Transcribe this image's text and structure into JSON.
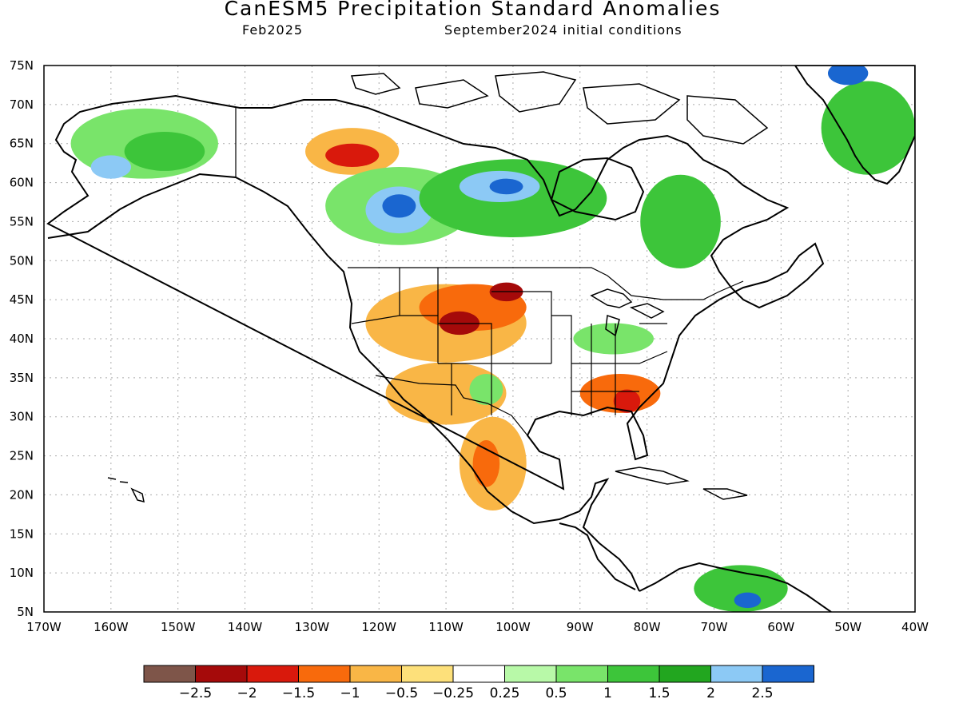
{
  "title": "CanESM5 Precipitation Standard Anomalies",
  "subtitle_left": "Feb2025",
  "subtitle_right": "September2024 initial conditions",
  "map": {
    "lon_range": [
      -170,
      -40
    ],
    "lat_range": [
      5,
      75
    ],
    "lat_labels": [
      "75N",
      "70N",
      "65N",
      "60N",
      "55N",
      "50N",
      "45N",
      "40N",
      "35N",
      "30N",
      "25N",
      "20N",
      "15N",
      "10N",
      "5N"
    ],
    "lon_labels": [
      "170W",
      "160W",
      "150W",
      "140W",
      "130W",
      "120W",
      "110W",
      "100W",
      "90W",
      "80W",
      "70W",
      "60W",
      "50W",
      "40W"
    ]
  },
  "colorbar": {
    "colors": [
      "#7e5549",
      "#a50a0a",
      "#d9190c",
      "#f86a0c",
      "#f9b646",
      "#fde07a",
      "#ffffff",
      "#b8f9a8",
      "#79e46a",
      "#3dc53a",
      "#22a61f",
      "#8cc9f5",
      "#1a66d0"
    ],
    "labels": [
      "−2.5",
      "−2",
      "−1.5",
      "−1",
      "−0.5",
      "−0.25",
      "0.25",
      "0.5",
      "1",
      "1.5",
      "2",
      "2.5"
    ]
  },
  "regions": [
    {
      "id": "alaska-wet",
      "color": "#79e46a",
      "lon": -155,
      "lat": 65,
      "rx": 11,
      "ry": 4.5
    },
    {
      "id": "alaska-wet-core",
      "color": "#3dc53a",
      "lon": -152,
      "lat": 64,
      "rx": 6,
      "ry": 2.5
    },
    {
      "id": "alaska-sw",
      "color": "#8cc9f5",
      "lon": -160,
      "lat": 62,
      "rx": 3,
      "ry": 1.5
    },
    {
      "id": "yukon-dry",
      "color": "#f9b646",
      "lon": -124,
      "lat": 64,
      "rx": 7,
      "ry": 3
    },
    {
      "id": "yukon-dry-core",
      "color": "#d9190c",
      "lon": -124,
      "lat": 63.5,
      "rx": 4,
      "ry": 1.5
    },
    {
      "id": "canada-wet-west",
      "color": "#79e46a",
      "lon": -117,
      "lat": 57,
      "rx": 11,
      "ry": 5
    },
    {
      "id": "canada-wet-west-core",
      "color": "#8cc9f5",
      "lon": -117,
      "lat": 56.5,
      "rx": 5,
      "ry": 3
    },
    {
      "id": "canada-wet-west-peak",
      "color": "#1a66d0",
      "lon": -117,
      "lat": 57,
      "rx": 2.5,
      "ry": 1.5
    },
    {
      "id": "canada-central-wet",
      "color": "#3dc53a",
      "lon": -100,
      "lat": 58,
      "rx": 14,
      "ry": 5
    },
    {
      "id": "canada-central-blue",
      "color": "#8cc9f5",
      "lon": -102,
      "lat": 59.5,
      "rx": 6,
      "ry": 2
    },
    {
      "id": "canada-central-peak",
      "color": "#1a66d0",
      "lon": -101,
      "lat": 59.5,
      "rx": 2.5,
      "ry": 1
    },
    {
      "id": "quebec-wet",
      "color": "#3dc53a",
      "lon": -75,
      "lat": 55,
      "rx": 6,
      "ry": 6
    },
    {
      "id": "greenland-wet",
      "color": "#3dc53a",
      "lon": -47,
      "lat": 67,
      "rx": 7,
      "ry": 6
    },
    {
      "id": "greenland-blue",
      "color": "#1a66d0",
      "lon": -50,
      "lat": 74,
      "rx": 3,
      "ry": 1.5
    },
    {
      "id": "plains-dry",
      "color": "#f9b646",
      "lon": -110,
      "lat": 42,
      "rx": 12,
      "ry": 5
    },
    {
      "id": "plains-dry-mid",
      "color": "#f86a0c",
      "lon": -106,
      "lat": 44,
      "rx": 8,
      "ry": 3
    },
    {
      "id": "plains-dry-core",
      "color": "#a50a0a",
      "lon": -108,
      "lat": 42,
      "rx": 3,
      "ry": 1.5
    },
    {
      "id": "dakota-dry-core",
      "color": "#a50a0a",
      "lon": -101,
      "lat": 46,
      "rx": 2.5,
      "ry": 1.2
    },
    {
      "id": "southwest-dry",
      "color": "#f9b646",
      "lon": -110,
      "lat": 33,
      "rx": 9,
      "ry": 4
    },
    {
      "id": "newmexico-wet",
      "color": "#79e46a",
      "lon": -104,
      "lat": 33.5,
      "rx": 2.5,
      "ry": 2
    },
    {
      "id": "mexico-dry",
      "color": "#f9b646",
      "lon": -103,
      "lat": 24,
      "rx": 5,
      "ry": 6
    },
    {
      "id": "mexico-dry-core",
      "color": "#f86a0c",
      "lon": -104,
      "lat": 24,
      "rx": 2,
      "ry": 3
    },
    {
      "id": "southeast-dry",
      "color": "#f86a0c",
      "lon": -84,
      "lat": 33,
      "rx": 6,
      "ry": 2.5
    },
    {
      "id": "southeast-dry-core",
      "color": "#d9190c",
      "lon": -83,
      "lat": 32,
      "rx": 2,
      "ry": 1.5
    },
    {
      "id": "ohio-wet",
      "color": "#79e46a",
      "lon": -85,
      "lat": 40,
      "rx": 6,
      "ry": 2
    },
    {
      "id": "southamerica-wet",
      "color": "#3dc53a",
      "lon": -66,
      "lat": 8,
      "rx": 7,
      "ry": 3
    },
    {
      "id": "southamerica-blue",
      "color": "#1a66d0",
      "lon": -65,
      "lat": 6.5,
      "rx": 2,
      "ry": 1
    }
  ]
}
